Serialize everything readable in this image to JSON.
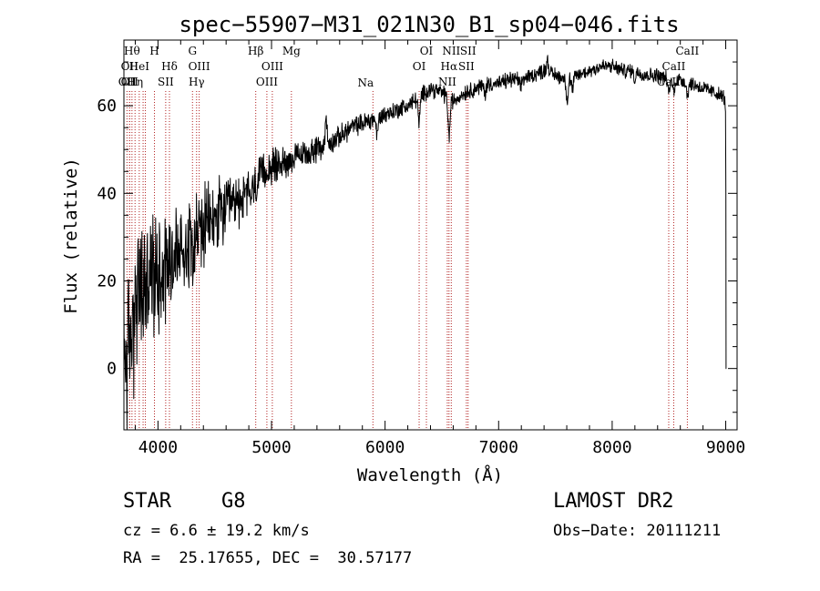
{
  "chart_data": {
    "type": "line",
    "title": "spec−55907−M31_021N30_B1_sp04−046.fits",
    "xlabel": "Wavelength (Å)",
    "ylabel": "Flux (relative)",
    "xlim": [
      3700,
      9100
    ],
    "ylim": [
      -14,
      75
    ],
    "xticks": [
      4000,
      5000,
      6000,
      7000,
      8000,
      9000
    ],
    "yticks": [
      0,
      20,
      40,
      60
    ],
    "line_color": "#000000",
    "marker_color": "#b22222",
    "spectrum_anchors": [
      [
        3700,
        2
      ],
      [
        3750,
        5
      ],
      [
        3800,
        14
      ],
      [
        3850,
        18
      ],
      [
        3900,
        19
      ],
      [
        3950,
        21
      ],
      [
        4000,
        22
      ],
      [
        4050,
        24
      ],
      [
        4100,
        25
      ],
      [
        4150,
        26
      ],
      [
        4200,
        27
      ],
      [
        4250,
        28
      ],
      [
        4300,
        30
      ],
      [
        4350,
        31
      ],
      [
        4400,
        32
      ],
      [
        4450,
        33
      ],
      [
        4500,
        34
      ],
      [
        4550,
        35
      ],
      [
        4600,
        36
      ],
      [
        4700,
        38
      ],
      [
        4800,
        40
      ],
      [
        4850,
        41
      ],
      [
        4900,
        44
      ],
      [
        5000,
        46
      ],
      [
        5100,
        47
      ],
      [
        5200,
        48
      ],
      [
        5300,
        49
      ],
      [
        5400,
        50
      ],
      [
        5500,
        51
      ],
      [
        5600,
        53
      ],
      [
        5700,
        55
      ],
      [
        5800,
        56
      ],
      [
        5900,
        57
      ],
      [
        6000,
        58
      ],
      [
        6100,
        59
      ],
      [
        6200,
        60
      ],
      [
        6300,
        62
      ],
      [
        6400,
        64
      ],
      [
        6500,
        63
      ],
      [
        6600,
        61
      ],
      [
        6700,
        63
      ],
      [
        6800,
        64
      ],
      [
        6900,
        65
      ],
      [
        7000,
        65
      ],
      [
        7100,
        66
      ],
      [
        7200,
        66
      ],
      [
        7300,
        67
      ],
      [
        7400,
        68
      ],
      [
        7500,
        67
      ],
      [
        7600,
        66
      ],
      [
        7700,
        67
      ],
      [
        7800,
        68
      ],
      [
        7900,
        69
      ],
      [
        8000,
        69
      ],
      [
        8100,
        68
      ],
      [
        8200,
        68
      ],
      [
        8300,
        67
      ],
      [
        8400,
        67
      ],
      [
        8500,
        66
      ],
      [
        8600,
        66
      ],
      [
        8700,
        65
      ],
      [
        8800,
        64
      ],
      [
        8900,
        63
      ],
      [
        8980,
        62
      ],
      [
        9000,
        60
      ]
    ],
    "noise_amplitude": [
      [
        3700,
        14
      ],
      [
        3900,
        12
      ],
      [
        4100,
        10
      ],
      [
        4300,
        8
      ],
      [
        4500,
        7
      ],
      [
        4700,
        5
      ],
      [
        4900,
        3.5
      ],
      [
        5200,
        2.5
      ],
      [
        5500,
        2
      ],
      [
        6000,
        1.6
      ],
      [
        7000,
        1.4
      ],
      [
        8000,
        1.3
      ],
      [
        9000,
        1.3
      ]
    ],
    "spectrum_features": [
      [
        5480,
        6
      ],
      [
        5930,
        -4
      ],
      [
        6300,
        -6
      ],
      [
        6562,
        -5
      ],
      [
        6565,
        -4
      ],
      [
        6880,
        -2
      ],
      [
        7190,
        -2
      ],
      [
        7430,
        3
      ],
      [
        7605,
        -5
      ],
      [
        7650,
        -3
      ],
      [
        8200,
        -2
      ],
      [
        8498,
        -3
      ],
      [
        8542,
        -3
      ],
      [
        8662,
        -3
      ]
    ],
    "tail_points": [
      [
        9001,
        40
      ],
      [
        9003,
        0
      ],
      [
        9005,
        0
      ]
    ],
    "emission_lines": [
      {
        "wavelength": 3727,
        "label": "OII",
        "row": 2
      },
      {
        "wavelength": 3750,
        "label": "OII",
        "row": 2
      },
      {
        "wavelength": 3750,
        "label": "OII",
        "row": 1
      },
      {
        "wavelength": 3771,
        "label": "Hθ",
        "row": 0
      },
      {
        "wavelength": 3798,
        "label": "Hη",
        "row": 2
      },
      {
        "wavelength": 3835,
        "label": "HeI",
        "row": 1
      },
      {
        "wavelength": 3869,
        "label": "",
        "row": -1
      },
      {
        "wavelength": 3889,
        "label": "",
        "row": -1
      },
      {
        "wavelength": 3969,
        "label": "H",
        "row": 0
      },
      {
        "wavelength": 4068,
        "label": "SII",
        "row": 2
      },
      {
        "wavelength": 4101,
        "label": "Hδ",
        "row": 1
      },
      {
        "wavelength": 4304,
        "label": "G",
        "row": 0
      },
      {
        "wavelength": 4340,
        "label": "Hγ",
        "row": 2
      },
      {
        "wavelength": 4363,
        "label": "OIII",
        "row": 1
      },
      {
        "wavelength": 4861,
        "label": "Hβ",
        "row": 0
      },
      {
        "wavelength": 4959,
        "label": "OIII",
        "row": 2
      },
      {
        "wavelength": 5007,
        "label": "OIII",
        "row": 1
      },
      {
        "wavelength": 5175,
        "label": "Mg",
        "row": 0
      },
      {
        "wavelength": 5893,
        "label": "Na",
        "row": 3
      },
      {
        "wavelength": 6300,
        "label": "OI",
        "row": 1
      },
      {
        "wavelength": 6364,
        "label": "OI",
        "row": 0
      },
      {
        "wavelength": 6548,
        "label": "NII",
        "row": 2
      },
      {
        "wavelength": 6563,
        "label": "Hα",
        "row": 1
      },
      {
        "wavelength": 6583,
        "label": "NII",
        "row": 0
      },
      {
        "wavelength": 6716,
        "label": "SII",
        "row": 1
      },
      {
        "wavelength": 6731,
        "label": "SII",
        "row": 0
      },
      {
        "wavelength": 8498,
        "label": "CaII",
        "row": 2
      },
      {
        "wavelength": 8542,
        "label": "CaII",
        "row": 1
      },
      {
        "wavelength": 8662,
        "label": "CaII",
        "row": 0
      }
    ]
  },
  "info": {
    "object_class": "STAR",
    "subclass": "G8",
    "survey": "LAMOST DR2",
    "redshift_text": "cz = 6.6 ± 19.2 km/s",
    "obs_date": "Obs−Date: 20111211",
    "coords_text": "RA =  25.17655, DEC =  30.57177"
  }
}
